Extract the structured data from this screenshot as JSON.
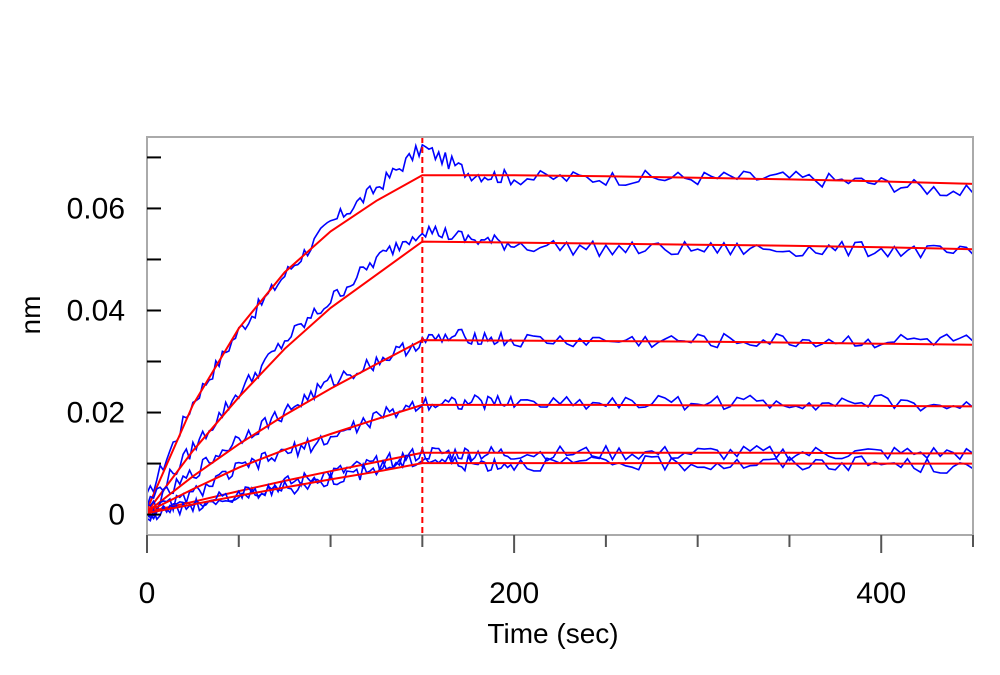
{
  "chart_data": {
    "type": "line",
    "title": "",
    "xlabel": "Time (sec)",
    "ylabel": "nm",
    "xlim": [
      0,
      450
    ],
    "ylim": [
      -0.004,
      0.074
    ],
    "x_ticks": [
      0,
      200,
      400
    ],
    "x_tick_labels": [
      "0",
      "200",
      "400"
    ],
    "y_ticks": [
      0,
      0.02,
      0.04,
      0.06
    ],
    "y_tick_labels": [
      "0",
      "0.02",
      "0.04",
      "0.06"
    ],
    "grid": false,
    "legend": "none",
    "association_end_x": 150,
    "colors": {
      "measured": "#0000ff",
      "fit": "#ff0000",
      "dissociation_marker": "#ff0000",
      "frame": "#aaaaaa"
    },
    "series": [
      {
        "kind": "measured",
        "x": [
          0,
          25,
          50,
          75,
          100,
          125,
          150,
          175,
          200,
          250,
          300,
          350,
          400,
          450
        ],
        "y": [
          0.003,
          0.022,
          0.036,
          0.047,
          0.057,
          0.064,
          0.072,
          0.067,
          0.066,
          0.066,
          0.066,
          0.066,
          0.065,
          0.063
        ]
      },
      {
        "kind": "fit",
        "x": [
          0,
          25,
          50,
          75,
          100,
          125,
          150,
          200,
          250,
          300,
          350,
          400,
          450
        ],
        "y": [
          0.001,
          0.0215,
          0.0365,
          0.0475,
          0.0555,
          0.0615,
          0.0665,
          0.0665,
          0.0663,
          0.066,
          0.0657,
          0.0653,
          0.0648
        ]
      },
      {
        "kind": "measured",
        "x": [
          0,
          25,
          50,
          75,
          100,
          125,
          150,
          175,
          200,
          250,
          300,
          350,
          400,
          450
        ],
        "y": [
          0.002,
          0.013,
          0.024,
          0.034,
          0.042,
          0.05,
          0.056,
          0.054,
          0.053,
          0.052,
          0.052,
          0.052,
          0.052,
          0.051
        ]
      },
      {
        "kind": "fit",
        "x": [
          0,
          25,
          50,
          75,
          100,
          125,
          150,
          200,
          250,
          300,
          350,
          400,
          450
        ],
        "y": [
          0.0005,
          0.0125,
          0.023,
          0.0325,
          0.0405,
          0.047,
          0.0535,
          0.0533,
          0.0531,
          0.0529,
          0.0527,
          0.0524,
          0.052
        ]
      },
      {
        "kind": "measured",
        "x": [
          0,
          25,
          50,
          75,
          100,
          125,
          150,
          175,
          200,
          250,
          300,
          350,
          400,
          450
        ],
        "y": [
          0.001,
          0.008,
          0.015,
          0.02,
          0.026,
          0.03,
          0.034,
          0.035,
          0.034,
          0.034,
          0.034,
          0.034,
          0.034,
          0.034
        ]
      },
      {
        "kind": "fit",
        "x": [
          0,
          25,
          50,
          75,
          100,
          125,
          150,
          200,
          250,
          300,
          350,
          400,
          450
        ],
        "y": [
          0.0005,
          0.0075,
          0.0138,
          0.0195,
          0.0247,
          0.0295,
          0.0342,
          0.0341,
          0.034,
          0.0339,
          0.0337,
          0.0335,
          0.0333
        ]
      },
      {
        "kind": "measured",
        "x": [
          0,
          25,
          50,
          75,
          100,
          125,
          150,
          175,
          200,
          250,
          300,
          350,
          400,
          450
        ],
        "y": [
          0.0,
          0.004,
          0.009,
          0.012,
          0.015,
          0.019,
          0.022,
          0.022,
          0.022,
          0.022,
          0.022,
          0.022,
          0.022,
          0.021
        ]
      },
      {
        "kind": "fit",
        "x": [
          0,
          25,
          50,
          75,
          100,
          125,
          150,
          200,
          250,
          300,
          350,
          400,
          450
        ],
        "y": [
          0.0005,
          0.005,
          0.0092,
          0.0127,
          0.0158,
          0.0187,
          0.0215,
          0.0215,
          0.0215,
          0.0214,
          0.0214,
          0.0213,
          0.0212
        ]
      },
      {
        "kind": "measured",
        "x": [
          0,
          25,
          50,
          75,
          100,
          125,
          150,
          175,
          200,
          250,
          300,
          350,
          400,
          450
        ],
        "y": [
          0.0,
          0.002,
          0.004,
          0.006,
          0.008,
          0.01,
          0.012,
          0.012,
          0.012,
          0.012,
          0.012,
          0.012,
          0.012,
          0.012
        ]
      },
      {
        "kind": "fit",
        "x": [
          0,
          25,
          50,
          75,
          100,
          125,
          150,
          200,
          250,
          300,
          350,
          400,
          450
        ],
        "y": [
          0.0005,
          0.0025,
          0.0046,
          0.0066,
          0.0085,
          0.0103,
          0.0121,
          0.0121,
          0.0121,
          0.0121,
          0.0121,
          0.012,
          0.012
        ]
      },
      {
        "kind": "measured",
        "x": [
          0,
          25,
          50,
          75,
          100,
          125,
          150,
          175,
          200,
          250,
          300,
          350,
          400,
          450
        ],
        "y": [
          0.0,
          0.002,
          0.004,
          0.005,
          0.007,
          0.009,
          0.011,
          0.01,
          0.01,
          0.01,
          0.01,
          0.01,
          0.01,
          0.009
        ]
      },
      {
        "kind": "fit",
        "x": [
          0,
          25,
          50,
          75,
          100,
          125,
          150,
          200,
          250,
          300,
          350,
          400,
          450
        ],
        "y": [
          0.0003,
          0.002,
          0.0037,
          0.0053,
          0.0069,
          0.0084,
          0.0101,
          0.0101,
          0.0101,
          0.0101,
          0.01,
          0.01,
          0.01
        ]
      }
    ]
  }
}
